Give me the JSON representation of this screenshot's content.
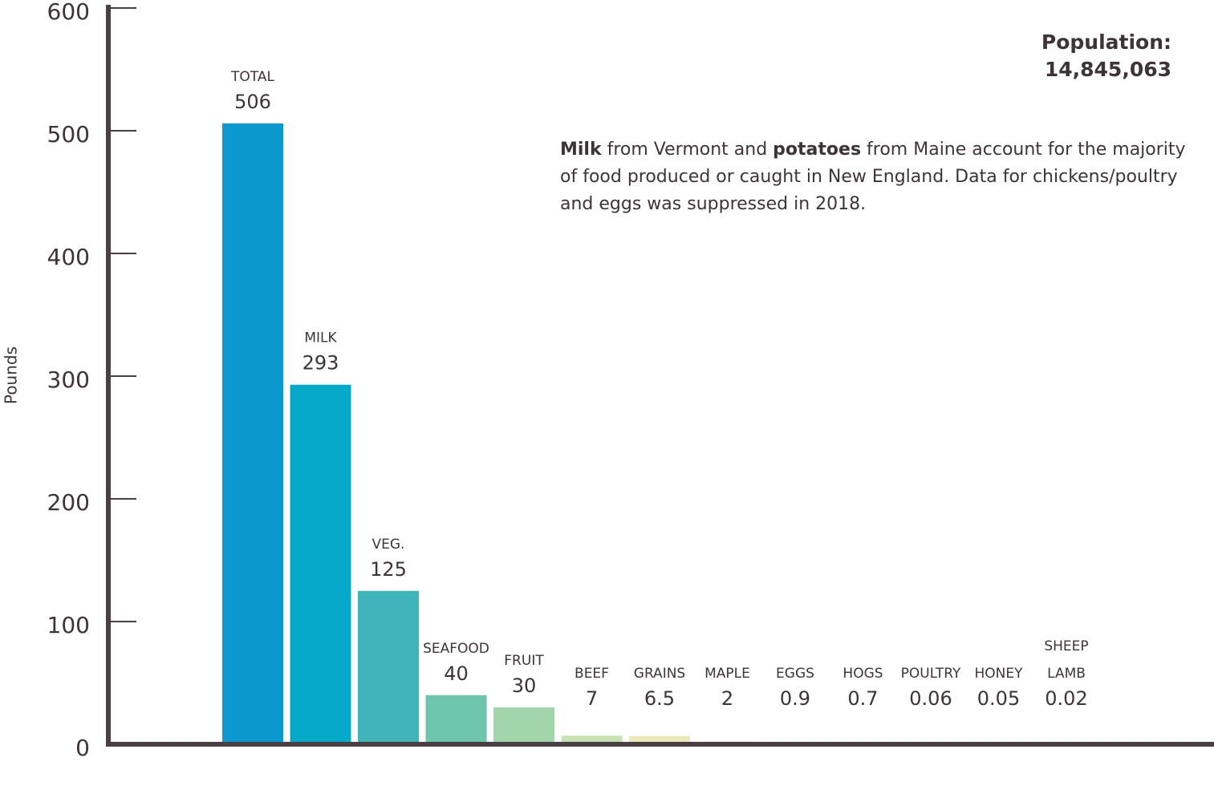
{
  "chart_data": {
    "type": "bar",
    "y_label": "Pounds",
    "population_label": "Population:",
    "population": "14,845,063",
    "note": [
      "Milk",
      " from Vermont and ",
      "potatoes",
      " from Maine account for the majority of food produced or caught in New England. Data for chickens/poultry and eggs was suppressed in 2018."
    ],
    "categories": [
      "TOTAL",
      "MILK",
      "VEG.",
      "SEAFOOD",
      "FRUIT",
      "BEEF",
      "GRAINS",
      "MAPLE",
      "EGGS",
      "HOGS",
      "POULTRY",
      "HONEY",
      "SHEEP LAMB"
    ],
    "values": [
      506,
      293,
      125,
      40,
      30,
      7,
      6.5,
      2,
      0.9,
      0.7,
      0.06,
      0.05,
      0.02
    ],
    "colors": [
      "#0b98cf",
      "#07a9c9",
      "#40b5b9",
      "#6ec5ae",
      "#a0d6a9",
      "#c7e3b6",
      "#ebe9b9",
      "#d39a3d",
      "#8fa84a",
      "#7a9a52",
      "#5f7da6",
      "#4f9fc0",
      "#8bb6c4"
    ],
    "ylim": [
      0,
      600
    ],
    "yticks": [
      0,
      100,
      200,
      300,
      400,
      500,
      600
    ]
  }
}
